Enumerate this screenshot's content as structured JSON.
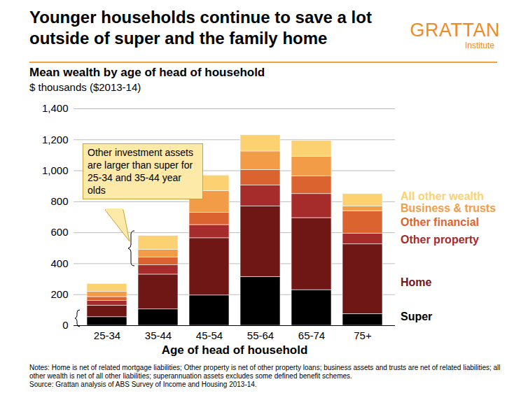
{
  "chart_data": {
    "type": "bar",
    "stacked": true,
    "grid": true,
    "legend": "right",
    "title": "Younger households continue to save a lot outside of super and the family home",
    "logo": "GRATTAN",
    "logo_sub": "Institute",
    "subtitle": "Mean wealth by age of head of household",
    "y_label": "$ thousands ($2013-14)",
    "x_label": "Age of head of household",
    "annotation": "Other investment assets are larger than super for 25-34 and 35-44 year olds",
    "notes": "Notes: Home is net of related mortgage liabilities; Other property is net of other property loans; business assets and trusts are net of related liabilities; all other wealth is net of all other liabilities; superannuation assets excludes some defined benefit schemes.",
    "source": "Source: Grattan analysis of ABS Survey of Income and Housing 2013-14.",
    "categories": [
      "25-34",
      "35-44",
      "45-54",
      "55-64",
      "65-74",
      "75+"
    ],
    "series": [
      {
        "name": "Super",
        "color": "#000000",
        "values": [
          55,
          105,
          195,
          315,
          230,
          75
        ]
      },
      {
        "name": "Home",
        "color": "#6f1714",
        "values": [
          75,
          225,
          370,
          455,
          465,
          450
        ]
      },
      {
        "name": "Other property",
        "color": "#a62b2b",
        "values": [
          30,
          60,
          85,
          135,
          155,
          70
        ]
      },
      {
        "name": "Other financial",
        "color": "#da6330",
        "values": [
          25,
          50,
          80,
          100,
          115,
          145
        ]
      },
      {
        "name": "Business & trusts",
        "color": "#f39c47",
        "values": [
          35,
          50,
          140,
          120,
          125,
          30
        ]
      },
      {
        "name": "All other wealth",
        "color": "#fcd172",
        "values": [
          50,
          90,
          100,
          105,
          105,
          80
        ]
      }
    ],
    "ylim": [
      0,
      1400
    ],
    "yticks": [
      0,
      200,
      400,
      600,
      800,
      {
        "value": 1000,
        "label": "1,000"
      },
      {
        "value": 1200,
        "label": "1,200"
      },
      {
        "value": 1400,
        "label": "1,400"
      }
    ]
  }
}
